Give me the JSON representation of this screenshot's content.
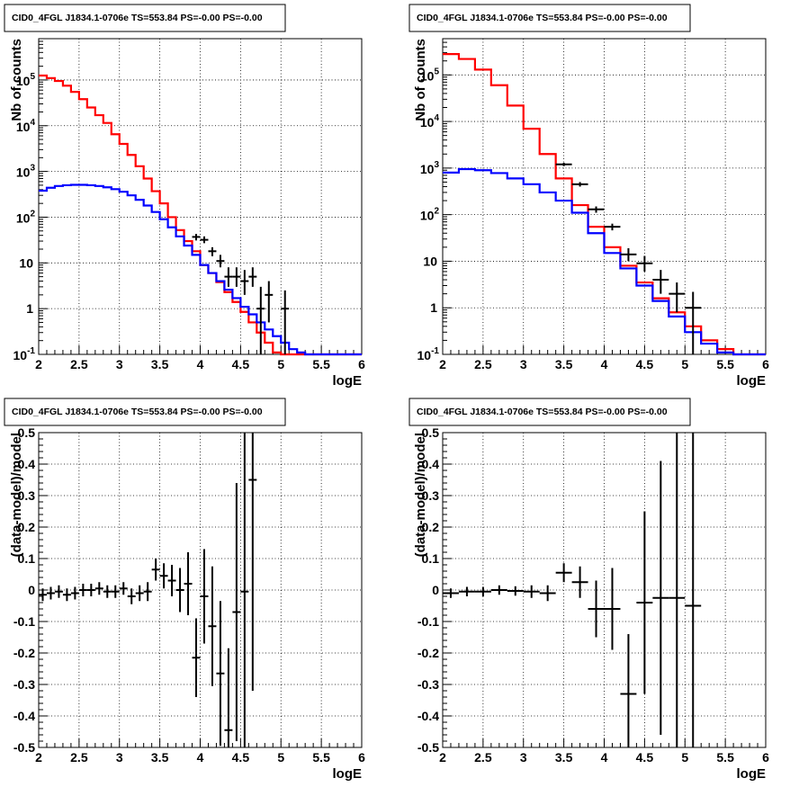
{
  "chart_data": [
    {
      "type": "line",
      "title": "CID0_4FGL J1834.1-0706e TS=553.84 PS=-0.00 PS=-0.00",
      "xlabel": "logE",
      "ylabel": "Nb of counts",
      "xlim": [
        2,
        6
      ],
      "ylim": [
        0.1,
        800000
      ],
      "ylog": true,
      "grid": true,
      "x_ticks": [
        "2",
        "2.5",
        "3",
        "3.5",
        "4",
        "4.5",
        "5",
        "5.5",
        "6"
      ],
      "y_ticks": [
        "10^-1",
        "1",
        "10",
        "10^2",
        "10^3",
        "10^4",
        "10^5"
      ],
      "bin_edges": [
        2.0,
        2.1,
        2.2,
        2.3,
        2.4,
        2.5,
        2.6,
        2.7,
        2.8,
        2.9,
        3.0,
        3.1,
        3.2,
        3.3,
        3.4,
        3.5,
        3.6,
        3.7,
        3.8,
        3.9,
        4.0,
        4.1,
        4.2,
        4.3,
        4.4,
        4.5,
        4.6,
        4.7,
        4.8,
        4.9,
        5.0,
        5.1,
        5.2,
        5.3,
        5.4,
        5.5,
        5.6,
        5.7,
        5.8,
        5.9,
        6.0
      ],
      "series": [
        {
          "color": "#ff0000",
          "values": [
            125000,
            110000,
            95000,
            75000,
            55000,
            38000,
            25000,
            17000,
            11500,
            6500,
            4000,
            2300,
            1300,
            700,
            370,
            200,
            100,
            52,
            30,
            18,
            9,
            6,
            3.8,
            2.3,
            1.4,
            0.85,
            0.5,
            0.3,
            0.18,
            0.11,
            0.1,
            0.1,
            0.1,
            0.1,
            0.1,
            0.1,
            0.1,
            0.1,
            0.1,
            0.1
          ]
        },
        {
          "color": "#0000ff",
          "values": [
            380,
            440,
            480,
            500,
            510,
            510,
            500,
            480,
            450,
            410,
            360,
            300,
            240,
            180,
            130,
            90,
            60,
            38,
            24,
            15,
            9,
            6,
            4,
            2.6,
            1.7,
            1.1,
            0.75,
            0.5,
            0.35,
            0.25,
            0.18,
            0.13,
            0.11,
            0.1,
            0.1,
            0.1,
            0.1,
            0.1,
            0.1,
            0.1
          ]
        }
      ],
      "data_points": [
        {
          "x": 3.95,
          "y": 37,
          "xerr": 0.05,
          "ylo": 31,
          "yhi": 43
        },
        {
          "x": 4.05,
          "y": 32,
          "xerr": 0.05,
          "ylo": 27,
          "yhi": 38
        },
        {
          "x": 4.15,
          "y": 18,
          "xerr": 0.05,
          "ylo": 14,
          "yhi": 22
        },
        {
          "x": 4.25,
          "y": 11,
          "xerr": 0.05,
          "ylo": 8,
          "yhi": 15
        },
        {
          "x": 4.35,
          "y": 5,
          "xerr": 0.05,
          "ylo": 3,
          "yhi": 8
        },
        {
          "x": 4.45,
          "y": 5,
          "xerr": 0.05,
          "ylo": 3,
          "yhi": 8
        },
        {
          "x": 4.55,
          "y": 4,
          "xerr": 0.05,
          "ylo": 2,
          "yhi": 7
        },
        {
          "x": 4.65,
          "y": 5,
          "xerr": 0.05,
          "ylo": 3,
          "yhi": 8
        },
        {
          "x": 4.75,
          "y": 1,
          "xerr": 0.05,
          "ylo": 0.1,
          "yhi": 3
        },
        {
          "x": 4.85,
          "y": 2,
          "xerr": 0.05,
          "ylo": 0.5,
          "yhi": 4
        },
        {
          "x": 5.05,
          "y": 1,
          "xerr": 0.05,
          "ylo": 0.1,
          "yhi": 2.5
        }
      ]
    },
    {
      "type": "line",
      "title": "CID0_4FGL J1834.1-0706e TS=553.84 PS=-0.00 PS=-0.00",
      "xlabel": "logE",
      "ylabel": "Nb of counts",
      "xlim": [
        2,
        6
      ],
      "ylim": [
        0.1,
        600000
      ],
      "ylog": true,
      "grid": true,
      "x_ticks": [
        "2",
        "2.5",
        "3",
        "3.5",
        "4",
        "4.5",
        "5",
        "5.5",
        "6"
      ],
      "y_ticks": [
        "10^-1",
        "1",
        "10",
        "10^2",
        "10^3",
        "10^4",
        "10^5"
      ],
      "bin_edges": [
        2.0,
        2.2,
        2.4,
        2.6,
        2.8,
        3.0,
        3.2,
        3.4,
        3.6,
        3.8,
        4.0,
        4.2,
        4.4,
        4.6,
        4.8,
        5.0,
        5.2,
        5.4,
        5.6,
        5.8,
        6.0
      ],
      "series": [
        {
          "color": "#ff0000",
          "values": [
            280000,
            220000,
            130000,
            60000,
            22000,
            7000,
            2000,
            600,
            160,
            55,
            20,
            8,
            3.5,
            1.6,
            0.8,
            0.4,
            0.2,
            0.13,
            0.1,
            0.1
          ]
        },
        {
          "color": "#0000ff",
          "values": [
            800,
            950,
            900,
            780,
            600,
            450,
            300,
            200,
            110,
            40,
            15,
            7,
            3,
            1.4,
            0.65,
            0.3,
            0.17,
            0.11,
            0.1,
            0.1
          ]
        }
      ],
      "data_points": [
        {
          "x": 3.5,
          "y": 1200,
          "xerr": 0.1,
          "ylo": 1100,
          "yhi": 1300
        },
        {
          "x": 3.7,
          "y": 450,
          "xerr": 0.1,
          "ylo": 400,
          "yhi": 500
        },
        {
          "x": 3.9,
          "y": 130,
          "xerr": 0.1,
          "ylo": 110,
          "yhi": 150
        },
        {
          "x": 4.1,
          "y": 55,
          "xerr": 0.1,
          "ylo": 46,
          "yhi": 64
        },
        {
          "x": 4.3,
          "y": 14,
          "xerr": 0.1,
          "ylo": 10,
          "yhi": 19
        },
        {
          "x": 4.5,
          "y": 9,
          "xerr": 0.1,
          "ylo": 6,
          "yhi": 13
        },
        {
          "x": 4.7,
          "y": 4,
          "xerr": 0.1,
          "ylo": 2,
          "yhi": 6.5
        },
        {
          "x": 4.9,
          "y": 2,
          "xerr": 0.1,
          "ylo": 0.8,
          "yhi": 3.5
        },
        {
          "x": 5.1,
          "y": 1,
          "xerr": 0.1,
          "ylo": 0.1,
          "yhi": 2.2
        }
      ]
    },
    {
      "type": "scatter",
      "title": "CID0_4FGL J1834.1-0706e TS=553.84 PS=-0.00 PS=-0.00",
      "xlabel": "logE",
      "ylabel": "(data-model)/model",
      "xlim": [
        2,
        6
      ],
      "ylim": [
        -0.5,
        0.5
      ],
      "grid": true,
      "x_ticks": [
        "2",
        "2.5",
        "3",
        "3.5",
        "4",
        "4.5",
        "5",
        "5.5",
        "6"
      ],
      "y_ticks": [
        "-0.5",
        "-0.4",
        "-0.3",
        "-0.2",
        "-0.1",
        "0",
        "0.1",
        "0.2",
        "0.3",
        "0.4",
        "0.5"
      ],
      "points": [
        {
          "x": 2.05,
          "y": -0.015,
          "xerr": 0.05,
          "yerr": 0.02
        },
        {
          "x": 2.15,
          "y": -0.01,
          "xerr": 0.05,
          "yerr": 0.02
        },
        {
          "x": 2.25,
          "y": -0.005,
          "xerr": 0.05,
          "yerr": 0.02
        },
        {
          "x": 2.35,
          "y": -0.015,
          "xerr": 0.05,
          "yerr": 0.02
        },
        {
          "x": 2.45,
          "y": -0.01,
          "xerr": 0.05,
          "yerr": 0.02
        },
        {
          "x": 2.55,
          "y": 0.0,
          "xerr": 0.05,
          "yerr": 0.02
        },
        {
          "x": 2.65,
          "y": 0.0,
          "xerr": 0.05,
          "yerr": 0.02
        },
        {
          "x": 2.75,
          "y": 0.005,
          "xerr": 0.05,
          "yerr": 0.02
        },
        {
          "x": 2.85,
          "y": -0.005,
          "xerr": 0.05,
          "yerr": 0.02
        },
        {
          "x": 2.95,
          "y": -0.005,
          "xerr": 0.05,
          "yerr": 0.02
        },
        {
          "x": 3.05,
          "y": 0.005,
          "xerr": 0.05,
          "yerr": 0.02
        },
        {
          "x": 3.15,
          "y": -0.02,
          "xerr": 0.05,
          "yerr": 0.025
        },
        {
          "x": 3.25,
          "y": -0.01,
          "xerr": 0.05,
          "yerr": 0.025
        },
        {
          "x": 3.35,
          "y": -0.005,
          "xerr": 0.05,
          "yerr": 0.03
        },
        {
          "x": 3.45,
          "y": 0.065,
          "xerr": 0.05,
          "yerr": 0.035
        },
        {
          "x": 3.55,
          "y": 0.045,
          "xerr": 0.05,
          "yerr": 0.04
        },
        {
          "x": 3.65,
          "y": 0.03,
          "xerr": 0.05,
          "yerr": 0.05
        },
        {
          "x": 3.75,
          "y": 0.0,
          "xerr": 0.05,
          "yerr": 0.07
        },
        {
          "x": 3.85,
          "y": 0.02,
          "xerr": 0.05,
          "yerr": 0.1
        },
        {
          "x": 3.95,
          "y": -0.215,
          "xerr": 0.05,
          "yerr": 0.125
        },
        {
          "x": 4.05,
          "y": -0.02,
          "xerr": 0.05,
          "yerr": 0.15
        },
        {
          "x": 4.15,
          "y": -0.115,
          "xerr": 0.05,
          "yerr": 0.19
        },
        {
          "x": 4.25,
          "y": -0.265,
          "xerr": 0.05,
          "yerr": 0.23
        },
        {
          "x": 4.35,
          "y": -0.445,
          "xerr": 0.05,
          "yerr": 0.26
        },
        {
          "x": 4.45,
          "y": -0.07,
          "xerr": 0.05,
          "yerr": 0.41
        },
        {
          "x": 4.55,
          "y": -0.005,
          "xerr": 0.05,
          "yerr": 0.55
        },
        {
          "x": 4.65,
          "y": 0.35,
          "xerr": 0.05,
          "yerr": 0.67
        }
      ]
    },
    {
      "type": "scatter",
      "title": "CID0_4FGL J1834.1-0706e TS=553.84 PS=-0.00 PS=-0.00",
      "xlabel": "logE",
      "ylabel": "(data-model)/model",
      "xlim": [
        2,
        6
      ],
      "ylim": [
        -0.5,
        0.5
      ],
      "grid": true,
      "x_ticks": [
        "2",
        "2.5",
        "3",
        "3.5",
        "4",
        "4.5",
        "5",
        "5.5",
        "6"
      ],
      "y_ticks": [
        "-0.5",
        "-0.4",
        "-0.3",
        "-0.2",
        "-0.1",
        "0",
        "0.1",
        "0.2",
        "0.3",
        "0.4",
        "0.5"
      ],
      "points": [
        {
          "x": 2.1,
          "y": -0.01,
          "xerr": 0.1,
          "yerr": 0.015
        },
        {
          "x": 2.3,
          "y": -0.005,
          "xerr": 0.1,
          "yerr": 0.015
        },
        {
          "x": 2.5,
          "y": -0.005,
          "xerr": 0.1,
          "yerr": 0.015
        },
        {
          "x": 2.7,
          "y": 0.0,
          "xerr": 0.1,
          "yerr": 0.015
        },
        {
          "x": 2.9,
          "y": -0.003,
          "xerr": 0.1,
          "yerr": 0.015
        },
        {
          "x": 3.1,
          "y": -0.005,
          "xerr": 0.1,
          "yerr": 0.02
        },
        {
          "x": 3.3,
          "y": -0.01,
          "xerr": 0.1,
          "yerr": 0.025
        },
        {
          "x": 3.5,
          "y": 0.055,
          "xerr": 0.1,
          "yerr": 0.03
        },
        {
          "x": 3.7,
          "y": 0.025,
          "xerr": 0.1,
          "yerr": 0.05
        },
        {
          "x": 3.9,
          "y": -0.06,
          "xerr": 0.1,
          "yerr": 0.09
        },
        {
          "x": 4.1,
          "y": -0.06,
          "xerr": 0.1,
          "yerr": 0.13
        },
        {
          "x": 4.3,
          "y": -0.33,
          "xerr": 0.1,
          "yerr": 0.19
        },
        {
          "x": 4.5,
          "y": -0.04,
          "xerr": 0.1,
          "yerr": 0.29
        },
        {
          "x": 4.7,
          "y": -0.025,
          "xerr": 0.1,
          "yerr": 0.435
        },
        {
          "x": 4.9,
          "y": -0.025,
          "xerr": 0.1,
          "yerr": 0.6
        },
        {
          "x": 5.1,
          "y": -0.05,
          "xerr": 0.1,
          "yerr": 0.75
        }
      ]
    }
  ]
}
